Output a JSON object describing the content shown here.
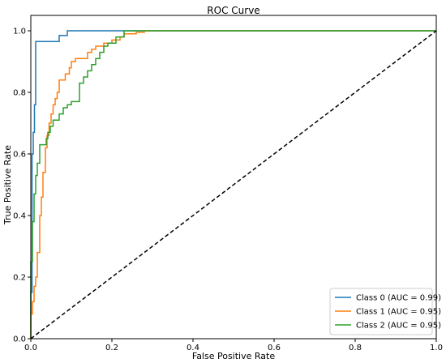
{
  "chart_data": {
    "type": "line",
    "title": "ROC Curve",
    "xlabel": "False Positive Rate",
    "ylabel": "True Positive Rate",
    "xlim": [
      0.0,
      1.0
    ],
    "ylim": [
      0.0,
      1.05
    ],
    "x_ticks": [
      "0.0",
      "0.2",
      "0.4",
      "0.6",
      "0.8",
      "1.0"
    ],
    "y_ticks": [
      "0.0",
      "0.2",
      "0.4",
      "0.6",
      "0.8",
      "1.0"
    ],
    "grid": false,
    "legend_position": "lower-right",
    "series": [
      {
        "name": "Class 0 (AUC = 0.99)",
        "color": "#1f77b4",
        "points": [
          [
            0,
            0
          ],
          [
            0,
            0.15
          ],
          [
            0.003,
            0.15
          ],
          [
            0.003,
            0.6
          ],
          [
            0.006,
            0.6
          ],
          [
            0.006,
            0.67
          ],
          [
            0.009,
            0.67
          ],
          [
            0.009,
            0.76
          ],
          [
            0.012,
            0.76
          ],
          [
            0.012,
            0.965
          ],
          [
            0.07,
            0.965
          ],
          [
            0.07,
            0.985
          ],
          [
            0.09,
            0.985
          ],
          [
            0.09,
            1.0
          ],
          [
            1.0,
            1.0
          ]
        ]
      },
      {
        "name": "Class 1 (AUC = 0.95)",
        "color": "#ff7f0e",
        "points": [
          [
            0,
            0
          ],
          [
            0,
            0.08
          ],
          [
            0.004,
            0.08
          ],
          [
            0.004,
            0.12
          ],
          [
            0.008,
            0.12
          ],
          [
            0.008,
            0.17
          ],
          [
            0.012,
            0.17
          ],
          [
            0.012,
            0.2
          ],
          [
            0.016,
            0.2
          ],
          [
            0.016,
            0.28
          ],
          [
            0.022,
            0.28
          ],
          [
            0.022,
            0.4
          ],
          [
            0.026,
            0.4
          ],
          [
            0.026,
            0.46
          ],
          [
            0.03,
            0.46
          ],
          [
            0.03,
            0.54
          ],
          [
            0.036,
            0.54
          ],
          [
            0.036,
            0.62
          ],
          [
            0.04,
            0.62
          ],
          [
            0.04,
            0.66
          ],
          [
            0.045,
            0.66
          ],
          [
            0.045,
            0.7
          ],
          [
            0.05,
            0.7
          ],
          [
            0.05,
            0.73
          ],
          [
            0.055,
            0.73
          ],
          [
            0.055,
            0.76
          ],
          [
            0.06,
            0.76
          ],
          [
            0.06,
            0.78
          ],
          [
            0.065,
            0.78
          ],
          [
            0.065,
            0.8
          ],
          [
            0.07,
            0.8
          ],
          [
            0.07,
            0.84
          ],
          [
            0.085,
            0.84
          ],
          [
            0.085,
            0.86
          ],
          [
            0.095,
            0.86
          ],
          [
            0.095,
            0.88
          ],
          [
            0.1,
            0.88
          ],
          [
            0.1,
            0.9
          ],
          [
            0.11,
            0.9
          ],
          [
            0.11,
            0.91
          ],
          [
            0.14,
            0.91
          ],
          [
            0.14,
            0.93
          ],
          [
            0.15,
            0.93
          ],
          [
            0.15,
            0.94
          ],
          [
            0.16,
            0.94
          ],
          [
            0.16,
            0.95
          ],
          [
            0.18,
            0.95
          ],
          [
            0.18,
            0.96
          ],
          [
            0.2,
            0.96
          ],
          [
            0.2,
            0.97
          ],
          [
            0.22,
            0.97
          ],
          [
            0.22,
            0.98
          ],
          [
            0.23,
            0.98
          ],
          [
            0.23,
            0.99
          ],
          [
            0.26,
            0.99
          ],
          [
            0.26,
            0.995
          ],
          [
            0.28,
            0.995
          ],
          [
            0.28,
            1.0
          ],
          [
            1.0,
            1.0
          ]
        ]
      },
      {
        "name": "Class 2 (AUC = 0.95)",
        "color": "#2ca02c",
        "points": [
          [
            0,
            0
          ],
          [
            0,
            0.25
          ],
          [
            0.004,
            0.25
          ],
          [
            0.004,
            0.38
          ],
          [
            0.008,
            0.38
          ],
          [
            0.008,
            0.47
          ],
          [
            0.012,
            0.47
          ],
          [
            0.012,
            0.53
          ],
          [
            0.016,
            0.53
          ],
          [
            0.016,
            0.57
          ],
          [
            0.022,
            0.57
          ],
          [
            0.022,
            0.63
          ],
          [
            0.038,
            0.63
          ],
          [
            0.038,
            0.65
          ],
          [
            0.042,
            0.65
          ],
          [
            0.042,
            0.67
          ],
          [
            0.048,
            0.67
          ],
          [
            0.048,
            0.69
          ],
          [
            0.055,
            0.69
          ],
          [
            0.055,
            0.71
          ],
          [
            0.07,
            0.71
          ],
          [
            0.07,
            0.73
          ],
          [
            0.08,
            0.73
          ],
          [
            0.08,
            0.75
          ],
          [
            0.09,
            0.75
          ],
          [
            0.09,
            0.76
          ],
          [
            0.1,
            0.76
          ],
          [
            0.1,
            0.77
          ],
          [
            0.12,
            0.77
          ],
          [
            0.12,
            0.83
          ],
          [
            0.13,
            0.83
          ],
          [
            0.13,
            0.85
          ],
          [
            0.14,
            0.85
          ],
          [
            0.14,
            0.87
          ],
          [
            0.15,
            0.87
          ],
          [
            0.15,
            0.89
          ],
          [
            0.16,
            0.89
          ],
          [
            0.16,
            0.91
          ],
          [
            0.17,
            0.91
          ],
          [
            0.17,
            0.93
          ],
          [
            0.18,
            0.93
          ],
          [
            0.18,
            0.95
          ],
          [
            0.19,
            0.95
          ],
          [
            0.19,
            0.96
          ],
          [
            0.21,
            0.96
          ],
          [
            0.21,
            0.98
          ],
          [
            0.23,
            0.98
          ],
          [
            0.23,
            1.0
          ],
          [
            1.0,
            1.0
          ]
        ]
      },
      {
        "name": "",
        "color": "#000000",
        "dashed": true,
        "points": [
          [
            0,
            0
          ],
          [
            1,
            1
          ]
        ]
      }
    ]
  }
}
